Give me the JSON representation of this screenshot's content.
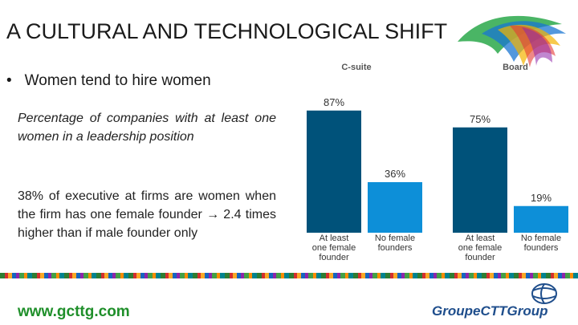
{
  "slide": {
    "title": "A CULTURAL AND TECHNOLOGICAL SHIFT",
    "bullet": "Women tend to hire women",
    "caption": "Percentage of companies with at least one women in a leadership position",
    "fact_line1": "38% of executive at firms are women when the firm has one female founder",
    "fact_line2": "2.4 times higher than if male founder only",
    "website": "www.gcttg.com",
    "brand": "GroupeCTTGroup"
  },
  "colors": {
    "dark_bar": "#00527a",
    "light_bar": "#0d8fd8",
    "website": "#1f8f2a",
    "brand": "#1f4e8c"
  },
  "chart_data": {
    "type": "bar",
    "groups": [
      {
        "name": "C-suite",
        "bars": [
          {
            "category": "At least one female founder",
            "value": 87,
            "label": "87%"
          },
          {
            "category": "No female founders",
            "value": 36,
            "label": "36%"
          }
        ]
      },
      {
        "name": "Board",
        "bars": [
          {
            "category": "At least one female founder",
            "value": 75,
            "label": "75%"
          },
          {
            "category": "No female founders",
            "value": 19,
            "label": "19%"
          }
        ]
      }
    ],
    "category_lines": {
      "At least one female founder": [
        "At least",
        "one female",
        "founder"
      ],
      "No female founders": [
        "No female",
        "founders"
      ]
    },
    "ylim": [
      0,
      100
    ],
    "grid": false
  }
}
